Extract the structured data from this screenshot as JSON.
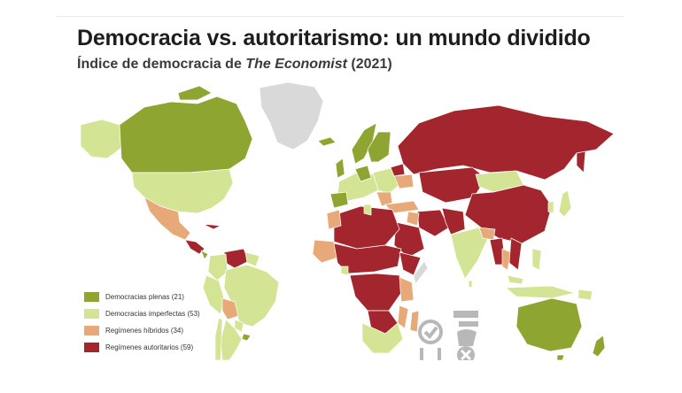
{
  "header": {
    "title": "Democracia vs. autoritarismo: un mundo dividido",
    "subtitle_pre": "Índice de democracia de ",
    "subtitle_em": "The Economist",
    "subtitle_post": " (2021)"
  },
  "legend": {
    "items": [
      {
        "label": "Democracias plenas (21)",
        "color": "#8fa532"
      },
      {
        "label": "Democracias imperfectas (53)",
        "color": "#d3e495"
      },
      {
        "label": "Regímenes híbridos (34)",
        "color": "#e7a977"
      },
      {
        "label": "Regímenes autoritarios (59)",
        "color": "#a3262e"
      }
    ]
  },
  "colors": {
    "no_data": "#d9d9d9",
    "border": "#ffffff"
  }
}
